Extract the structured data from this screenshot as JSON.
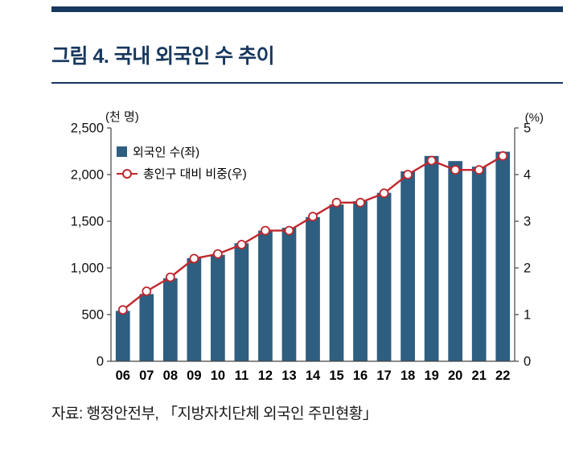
{
  "figure": {
    "title": "그림 4. 국내 외국인 수 추이",
    "source": "자료: 행정안전부, 「지방자치단체 외국인 주민현황」"
  },
  "colors": {
    "navy": "#17375E",
    "axis": "#444444",
    "tick_text": "#111111"
  },
  "chart_data": {
    "type": "combo",
    "categories": [
      "06",
      "07",
      "08",
      "09",
      "10",
      "11",
      "12",
      "13",
      "14",
      "15",
      "16",
      "17",
      "18",
      "19",
      "20",
      "21",
      "22"
    ],
    "series": [
      {
        "name": "외국인 수(좌)",
        "type": "bar",
        "axis": "left",
        "color": "#2E5E80",
        "values": [
          540,
          720,
          890,
          1105,
          1140,
          1265,
          1400,
          1430,
          1545,
          1680,
          1715,
          1805,
          2035,
          2200,
          2145,
          2085,
          2245
        ]
      },
      {
        "name": "총인구 대비 비중(우)",
        "type": "line",
        "axis": "right",
        "color": "#C0272D",
        "marker": "open-circle",
        "values": [
          1.1,
          1.5,
          1.8,
          2.2,
          2.3,
          2.5,
          2.8,
          2.8,
          3.1,
          3.4,
          3.4,
          3.6,
          4.0,
          4.3,
          4.1,
          4.1,
          4.4
        ]
      }
    ],
    "left_axis": {
      "label": "(천 명)",
      "min": 0,
      "max": 2500,
      "ticks": [
        "0",
        "500",
        "1,000",
        "1,500",
        "2,000",
        "2,500"
      ]
    },
    "right_axis": {
      "label": "(%)",
      "min": 0,
      "max": 5,
      "ticks": [
        "0",
        "1",
        "2",
        "3",
        "4",
        "5"
      ]
    },
    "legend_position": "inside-top-left",
    "grid": false
  }
}
